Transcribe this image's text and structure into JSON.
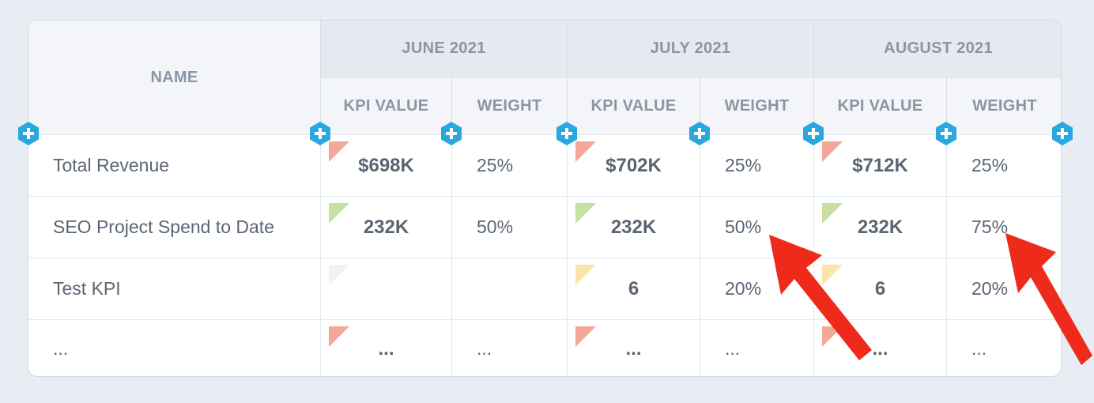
{
  "table": {
    "name_header": "NAME",
    "months": [
      "JUNE 2021",
      "JULY 2021",
      "AUGUST 2021"
    ],
    "kpi_label": "KPI VALUE",
    "weight_label": "WEIGHT",
    "rows": [
      {
        "name": "Total Revenue",
        "cells": [
          {
            "kpi": "$698K",
            "weight": "25%",
            "status": "red"
          },
          {
            "kpi": "$702K",
            "weight": "25%",
            "status": "red"
          },
          {
            "kpi": "$712K",
            "weight": "25%",
            "status": "red"
          }
        ]
      },
      {
        "name": "SEO Project Spend to Date",
        "cells": [
          {
            "kpi": "232K",
            "weight": "50%",
            "status": "green"
          },
          {
            "kpi": "232K",
            "weight": "50%",
            "status": "green"
          },
          {
            "kpi": "232K",
            "weight": "75%",
            "status": "green"
          }
        ]
      },
      {
        "name": "Test KPI",
        "cells": [
          {
            "kpi": "",
            "weight": "",
            "status": "empty"
          },
          {
            "kpi": "6",
            "weight": "20%",
            "status": "yellow"
          },
          {
            "kpi": "6",
            "weight": "20%",
            "status": "yellow"
          }
        ]
      },
      {
        "name": "...",
        "cells": [
          {
            "kpi": "...",
            "weight": "...",
            "status": "red"
          },
          {
            "kpi": "...",
            "weight": "...",
            "status": "red"
          },
          {
            "kpi": "...",
            "weight": "...",
            "status": "red"
          }
        ]
      }
    ]
  },
  "colors": {
    "red": "#f4a898",
    "green": "#c5e0a0",
    "yellow": "#fbe6a8",
    "empty": "#f0f2f4",
    "plus": "#29a8e0",
    "arrow": "#ee2a1b"
  },
  "icons": {
    "add_column": "plus-hexagon-icon",
    "annotation": "red-arrow"
  }
}
